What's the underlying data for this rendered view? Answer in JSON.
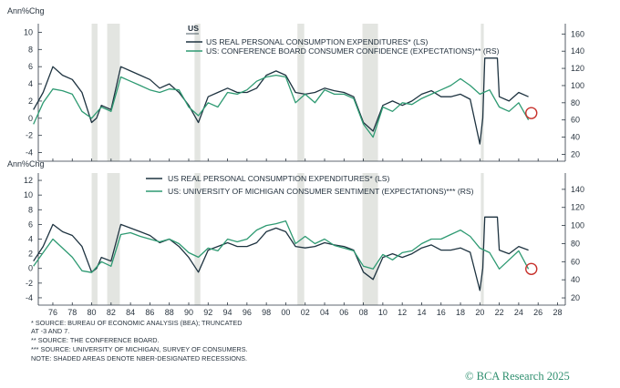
{
  "chart_data": [
    {
      "type": "line",
      "label_top": "US",
      "ylabel_left": "Ann%Chg",
      "left_ylim": [
        -5,
        11
      ],
      "left_ticks": [
        -4,
        -2,
        0,
        2,
        4,
        6,
        8,
        10
      ],
      "right_ylim": [
        12,
        172
      ],
      "right_ticks": [
        20,
        40,
        60,
        80,
        100,
        120,
        140,
        160
      ],
      "series": [
        {
          "name": "US REAL PERSONAL CONSUMPTION EXPENDITURES* (LS)",
          "axis": "left",
          "color": "#1e3340",
          "x": [
            1974,
            1975,
            1976,
            1977,
            1978,
            1979,
            1980,
            1980.5,
            1981,
            1982,
            1983,
            1984,
            1985,
            1986,
            1987,
            1988,
            1989,
            1990,
            1991,
            1992,
            1993,
            1994,
            1995,
            1996,
            1997,
            1998,
            1999,
            2000,
            2001,
            2002,
            2003,
            2004,
            2005,
            2006,
            2007,
            2008,
            2009,
            2010,
            2011,
            2012,
            2013,
            2014,
            2015,
            2016,
            2017,
            2018,
            2019,
            2020,
            2020.3,
            2020.5,
            2021,
            2021.8,
            2022,
            2023,
            2024,
            2025
          ],
          "values": [
            1,
            3,
            6,
            5,
            4.5,
            3,
            -0.5,
            0,
            1.5,
            1,
            6,
            5.5,
            5,
            4.5,
            3.5,
            4,
            3,
            1.5,
            -0.5,
            2.5,
            3,
            3.5,
            3,
            3,
            3.5,
            5,
            5.5,
            5,
            3,
            2.8,
            3,
            3.5,
            3.2,
            3,
            2.5,
            -0.5,
            -1.5,
            1.5,
            2,
            1.5,
            2,
            2.8,
            3.2,
            2.5,
            2.5,
            2.8,
            2.2,
            -3,
            0,
            7,
            7,
            7,
            2.5,
            2,
            3,
            2.5
          ]
        },
        {
          "name": "US: CONFERENCE BOARD CONSUMER CONFIDENCE (EXPECTATIONS)** (RS)",
          "axis": "right",
          "color": "#2e9a72",
          "x": [
            1974,
            1975,
            1976,
            1977,
            1978,
            1979,
            1980,
            1981,
            1982,
            1983,
            1984,
            1985,
            1986,
            1987,
            1988,
            1989,
            1990,
            1991,
            1992,
            1993,
            1994,
            1995,
            1996,
            1997,
            1998,
            1999,
            2000,
            2001,
            2002,
            2003,
            2004,
            2005,
            2006,
            2007,
            2008,
            2009,
            2010,
            2011,
            2012,
            2013,
            2014,
            2015,
            2016,
            2017,
            2018,
            2019,
            2020,
            2021,
            2022,
            2023,
            2024,
            2025
          ],
          "values": [
            55,
            80,
            96,
            94,
            90,
            70,
            62,
            75,
            70,
            110,
            105,
            100,
            95,
            92,
            96,
            95,
            75,
            65,
            80,
            75,
            92,
            90,
            95,
            105,
            110,
            112,
            110,
            80,
            90,
            80,
            95,
            90,
            90,
            85,
            55,
            40,
            75,
            70,
            80,
            78,
            85,
            90,
            95,
            100,
            108,
            100,
            90,
            95,
            75,
            70,
            80,
            60
          ]
        }
      ],
      "highlight_point": {
        "x": 2025.3,
        "axis": "right",
        "value": 68
      }
    },
    {
      "type": "line",
      "ylabel_left": "Ann%Chg",
      "left_ylim": [
        -5,
        13
      ],
      "left_ticks": [
        -4,
        -2,
        0,
        2,
        4,
        6,
        8,
        10,
        12
      ],
      "right_ylim": [
        12,
        158
      ],
      "right_ticks": [
        20,
        40,
        60,
        80,
        100,
        120,
        140
      ],
      "series": [
        {
          "name": "US REAL PERSONAL CONSUMPTION EXPENDITURES* (LS)",
          "axis": "left",
          "color": "#1e3340",
          "x": [
            1974,
            1975,
            1976,
            1977,
            1978,
            1979,
            1980,
            1980.5,
            1981,
            1982,
            1983,
            1984,
            1985,
            1986,
            1987,
            1988,
            1989,
            1990,
            1991,
            1992,
            1993,
            1994,
            1995,
            1996,
            1997,
            1998,
            1999,
            2000,
            2001,
            2002,
            2003,
            2004,
            2005,
            2006,
            2007,
            2008,
            2009,
            2010,
            2011,
            2012,
            2013,
            2014,
            2015,
            2016,
            2017,
            2018,
            2019,
            2020,
            2020.3,
            2020.5,
            2021,
            2021.8,
            2022,
            2023,
            2024,
            2025
          ],
          "values": [
            1,
            3,
            6,
            5,
            4.5,
            3,
            -0.5,
            0,
            1.5,
            1,
            6,
            5.5,
            5,
            4.5,
            3.5,
            4,
            3,
            1.5,
            -0.5,
            2.5,
            3,
            3.5,
            3,
            3,
            3.5,
            5,
            5.5,
            5,
            3,
            2.8,
            3,
            3.5,
            3.2,
            3,
            2.5,
            -0.5,
            -1.5,
            1.5,
            2,
            1.5,
            2,
            2.8,
            3.2,
            2.5,
            2.5,
            2.8,
            2.2,
            -3,
            0,
            7,
            7,
            7,
            2.5,
            2,
            3,
            2.5
          ]
        },
        {
          "name": "US: UNIVERSITY OF MICHIGAN CONSUMER SENTIMENT (EXPECTATIONS)*** (RS)",
          "axis": "right",
          "color": "#2e9a72",
          "x": [
            1974,
            1975,
            1976,
            1977,
            1978,
            1979,
            1980,
            1981,
            1982,
            1983,
            1984,
            1985,
            1986,
            1987,
            1988,
            1989,
            1990,
            1991,
            1992,
            1993,
            1994,
            1995,
            1996,
            1997,
            1998,
            1999,
            2000,
            2001,
            2002,
            2003,
            2004,
            2005,
            2006,
            2007,
            2008,
            2009,
            2010,
            2011,
            2012,
            2013,
            2014,
            2015,
            2016,
            2017,
            2018,
            2019,
            2020,
            2021,
            2022,
            2023,
            2024,
            2025
          ],
          "values": [
            55,
            70,
            85,
            75,
            65,
            50,
            48,
            60,
            55,
            90,
            92,
            88,
            85,
            82,
            85,
            80,
            70,
            65,
            75,
            72,
            85,
            82,
            85,
            95,
            100,
            102,
            105,
            80,
            88,
            80,
            85,
            78,
            75,
            72,
            55,
            52,
            68,
            62,
            70,
            72,
            80,
            85,
            85,
            90,
            95,
            88,
            75,
            70,
            52,
            62,
            72,
            52
          ]
        }
      ],
      "highlight_point": {
        "x": 2025.3,
        "axis": "right",
        "value": 52
      }
    }
  ],
  "x_axis": {
    "xlim": [
      1974.5,
      2028.8
    ],
    "ticks": [
      1976,
      1978,
      1980,
      1982,
      1984,
      1986,
      1988,
      1990,
      1992,
      1994,
      1996,
      1998,
      2000,
      2002,
      2004,
      2006,
      2008,
      2010,
      2012,
      2014,
      2016,
      2018,
      2020,
      2022,
      2024,
      2026,
      2028
    ],
    "tick_labels": [
      "76",
      "78",
      "80",
      "82",
      "84",
      "86",
      "88",
      "90",
      "92",
      "94",
      "96",
      "98",
      "00",
      "02",
      "04",
      "06",
      "08",
      "10",
      "12",
      "14",
      "16",
      "18",
      "20",
      "22",
      "24",
      "26",
      "28"
    ]
  },
  "recessions": [
    [
      1980.0,
      1980.6
    ],
    [
      1981.6,
      1982.9
    ],
    [
      1990.6,
      1991.2
    ],
    [
      2001.2,
      2001.9
    ],
    [
      2007.9,
      2009.5
    ],
    [
      2020.1,
      2020.4
    ]
  ],
  "footnotes": [
    "*   SOURCE: BUREAU OF ECONOMIC ANALYSIS (BEA); TRUNCATED",
    "     AT -3 AND 7.",
    "**  SOURCE: THE CONFERENCE BOARD.",
    "*** SOURCE: UNIVERSITY OF MICHIGAN, SURVEY OF CONSUMERS.",
    "NOTE: SHADED AREAS DENOTE NBER-DESIGNATED RECESSIONS."
  ],
  "brand": "© BCA Research 2025",
  "colors": {
    "dark": "#1e3340",
    "green": "#2e9a72",
    "recession": "#e3e5e1",
    "highlight": "#c7312b",
    "axis": "#2a3540"
  }
}
